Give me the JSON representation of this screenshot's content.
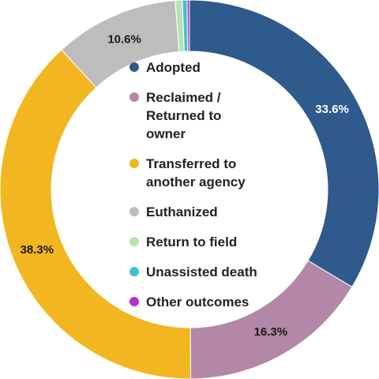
{
  "chart_data": {
    "type": "pie",
    "variant": "donut",
    "title": "",
    "slices": [
      {
        "label": "Adopted",
        "value": 33.6,
        "display": "33.6%",
        "color": "#2e5a8c",
        "label_color": "#ffffff"
      },
      {
        "label": "Reclaimed / Returned to owner",
        "value": 16.3,
        "display": "16.3%",
        "color": "#b388a6",
        "label_color": "#1a1a1a"
      },
      {
        "label": "Transferred to another agency",
        "value": 38.3,
        "display": "38.3%",
        "color": "#f2b720",
        "label_color": "#1a1a1a"
      },
      {
        "label": "Euthanized",
        "value": 10.6,
        "display": "10.6%",
        "color": "#bdbdbd",
        "label_color": "#1a1a1a"
      },
      {
        "label": "Return to field",
        "value": 0.6,
        "display": "",
        "color": "#b9e2b1",
        "label_color": "#1a1a1a"
      },
      {
        "label": "Unassisted death",
        "value": 0.4,
        "display": "",
        "color": "#3fc0cf",
        "label_color": "#1a1a1a"
      },
      {
        "label": "Other outcomes",
        "value": 0.2,
        "display": "",
        "color": "#b233c8",
        "label_color": "#1a1a1a"
      }
    ],
    "legend": {
      "position": "center",
      "entries": [
        {
          "lines": [
            "Adopted"
          ],
          "color": "#2e5a8c"
        },
        {
          "lines": [
            "Reclaimed /",
            "Returned to",
            "owner"
          ],
          "color": "#b388a6"
        },
        {
          "lines": [
            "Transferred to",
            "another agency"
          ],
          "color": "#f2b720"
        },
        {
          "lines": [
            "Euthanized"
          ],
          "color": "#bdbdbd"
        },
        {
          "lines": [
            "Return to field"
          ],
          "color": "#b9e2b1"
        },
        {
          "lines": [
            "Unassisted death"
          ],
          "color": "#3fc0cf"
        },
        {
          "lines": [
            "Other outcomes"
          ],
          "color": "#b233c8"
        }
      ]
    }
  }
}
